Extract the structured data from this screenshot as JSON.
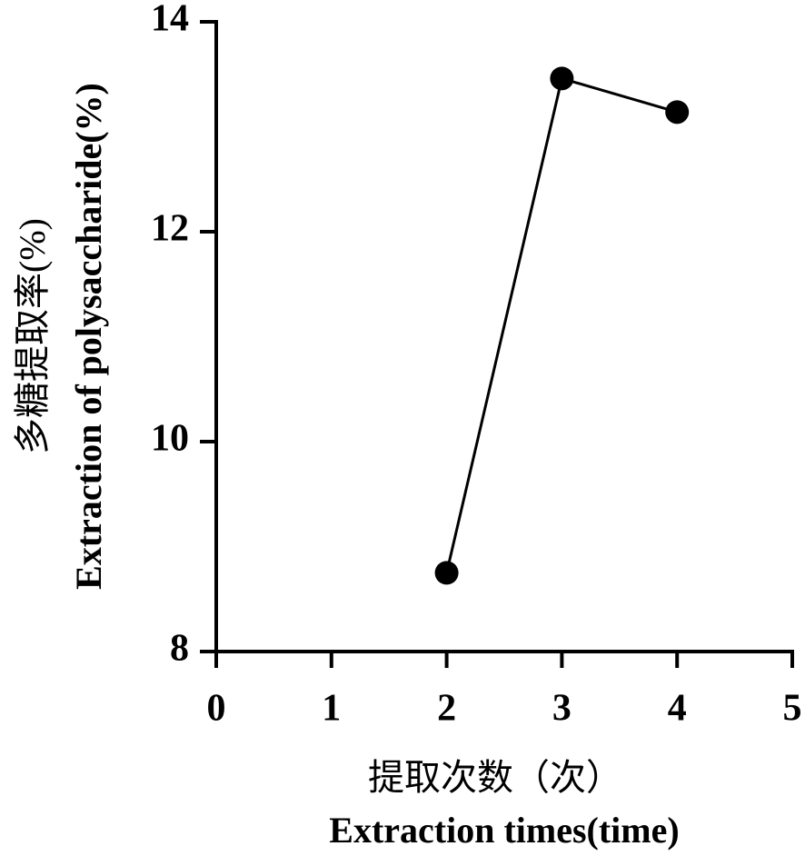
{
  "chart_data": {
    "type": "line",
    "ylabel": [
      "多糖提取率(%)",
      "Extraction of polysaccharide(%)"
    ],
    "xlabel": [
      "提取次数（次）",
      "Extraction times(time)"
    ],
    "x": [
      2,
      3,
      4
    ],
    "values": [
      8.75,
      13.46,
      13.14
    ],
    "color": "#000000",
    "xlim": [
      0,
      5
    ],
    "xticks": [
      0,
      1,
      2,
      3,
      4,
      5
    ],
    "ylim": [
      8,
      14
    ],
    "yticks": [
      8,
      10,
      12,
      14
    ],
    "grid": false
  }
}
